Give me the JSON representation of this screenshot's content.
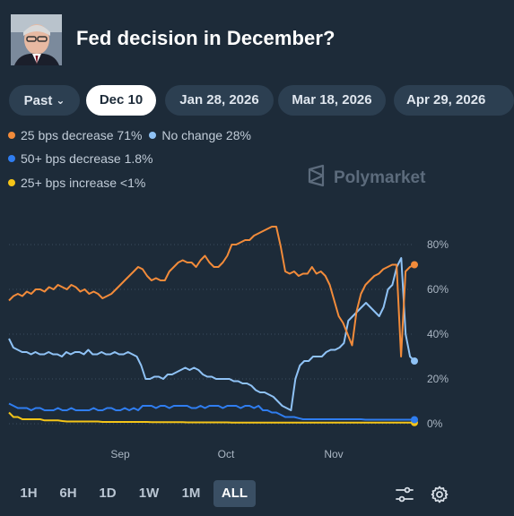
{
  "header": {
    "title": "Fed decision in December?"
  },
  "tabs": [
    {
      "label": "Past",
      "has_chevron": true
    },
    {
      "label": "Dec 10",
      "active": true
    },
    {
      "label": "Jan 28, 2026"
    },
    {
      "label": "Mar 18, 2026"
    },
    {
      "label": "Apr 29, 2026"
    }
  ],
  "legend": [
    {
      "label": "25 bps decrease 71%",
      "color": "#f28b3a"
    },
    {
      "label": "No change 28%",
      "color": "#8fc2f5"
    },
    {
      "label": "50+ bps decrease 1.8%",
      "color": "#2f7df0"
    },
    {
      "label": "25+ bps increase <1%",
      "color": "#f5c518"
    }
  ],
  "watermark": "Polymarket",
  "ranges": [
    "1H",
    "6H",
    "1D",
    "1W",
    "1M",
    "ALL"
  ],
  "active_range": "ALL",
  "chart_data": {
    "type": "line",
    "ylim": [
      0,
      90
    ],
    "y_ticks": [
      "80%",
      "60%",
      "40%",
      "20%",
      "0%"
    ],
    "x_ticks": [
      "Sep",
      "Oct",
      "Nov"
    ],
    "grid": true,
    "series": [
      {
        "name": "25 bps decrease",
        "color": "#f28b3a",
        "values": [
          55,
          57,
          58,
          57,
          59,
          58,
          60,
          60,
          59,
          61,
          60,
          62,
          61,
          60,
          62,
          61,
          59,
          60,
          58,
          59,
          58,
          56,
          57,
          58,
          60,
          62,
          64,
          66,
          68,
          70,
          69,
          66,
          64,
          65,
          64,
          64,
          68,
          70,
          72,
          73,
          72,
          72,
          70,
          73,
          75,
          72,
          70,
          70,
          72,
          75,
          80,
          80,
          81,
          82,
          82,
          84,
          85,
          86,
          87,
          88,
          88,
          79,
          68,
          67,
          68,
          66,
          67,
          67,
          70,
          67,
          68,
          66,
          62,
          55,
          48,
          45,
          40,
          35,
          50,
          58,
          62,
          64,
          66,
          67,
          69,
          70,
          71,
          71,
          30,
          68,
          70,
          71
        ]
      },
      {
        "name": "No change",
        "color": "#8fc2f5",
        "values": [
          38,
          34,
          33,
          32,
          32,
          31,
          32,
          31,
          31,
          32,
          31,
          31,
          30,
          32,
          31,
          32,
          32,
          31,
          33,
          31,
          31,
          32,
          31,
          31,
          32,
          31,
          31,
          32,
          31,
          30,
          26,
          20,
          20,
          21,
          21,
          20,
          22,
          22,
          23,
          24,
          25,
          24,
          25,
          24,
          22,
          21,
          21,
          20,
          20,
          20,
          20,
          19,
          19,
          18,
          18,
          17,
          15,
          14,
          14,
          13,
          12,
          10,
          8,
          7,
          6,
          20,
          26,
          28,
          28,
          30,
          30,
          30,
          32,
          33,
          33,
          34,
          36,
          46,
          48,
          50,
          52,
          54,
          52,
          50,
          48,
          52,
          60,
          62,
          70,
          74,
          40,
          30,
          28
        ]
      },
      {
        "name": "50+ bps decrease",
        "color": "#2f7df0",
        "values": [
          9,
          8,
          7,
          7,
          7,
          6,
          7,
          7,
          6,
          6,
          6,
          7,
          6,
          6,
          7,
          6,
          6,
          6,
          6,
          7,
          6,
          6,
          7,
          7,
          6,
          6,
          7,
          6,
          7,
          6,
          8,
          8,
          8,
          7,
          8,
          8,
          7,
          8,
          8,
          8,
          8,
          7,
          7,
          8,
          7,
          8,
          8,
          8,
          7,
          8,
          8,
          8,
          7,
          8,
          8,
          7,
          8,
          6,
          6,
          5,
          5,
          4,
          3,
          3,
          3,
          2.5,
          2,
          2,
          2,
          2,
          2,
          2,
          2,
          2,
          2,
          2,
          2,
          2,
          2,
          2,
          1.8,
          1.8,
          1.8,
          1.8,
          1.8,
          1.8,
          1.8,
          1.8,
          1.8,
          1.8,
          1.8,
          1.8
        ]
      },
      {
        "name": "25+ bps increase",
        "color": "#f5c518",
        "values": [
          5,
          3,
          3,
          2,
          2,
          2,
          2,
          2,
          1.5,
          1.5,
          1.5,
          1.5,
          1.2,
          1,
          1,
          1,
          1,
          1,
          1,
          1,
          1,
          0.8,
          0.8,
          0.8,
          0.8,
          0.8,
          0.8,
          0.8,
          0.8,
          0.8,
          0.8,
          0.8,
          0.7,
          0.7,
          0.7,
          0.7,
          0.7,
          0.7,
          0.7,
          0.7,
          0.6,
          0.6,
          0.6,
          0.6,
          0.6,
          0.6,
          0.6,
          0.6,
          0.6,
          0.6,
          0.5,
          0.5,
          0.5,
          0.5,
          0.5,
          0.5,
          0.5,
          0.5,
          0.5,
          0.5,
          0.5,
          0.5,
          0.5,
          0.5,
          0.5,
          0.5,
          0.5,
          0.5,
          0.5,
          0.5,
          0.5,
          0.5,
          0.5,
          0.5,
          0.5,
          0.5,
          0.5,
          0.5,
          0.5,
          0.5,
          0.5,
          0.5,
          0.5,
          0.5,
          0.5,
          0.5,
          0.5,
          0.5,
          0.5,
          0.5,
          0.5,
          0.5
        ]
      }
    ]
  }
}
